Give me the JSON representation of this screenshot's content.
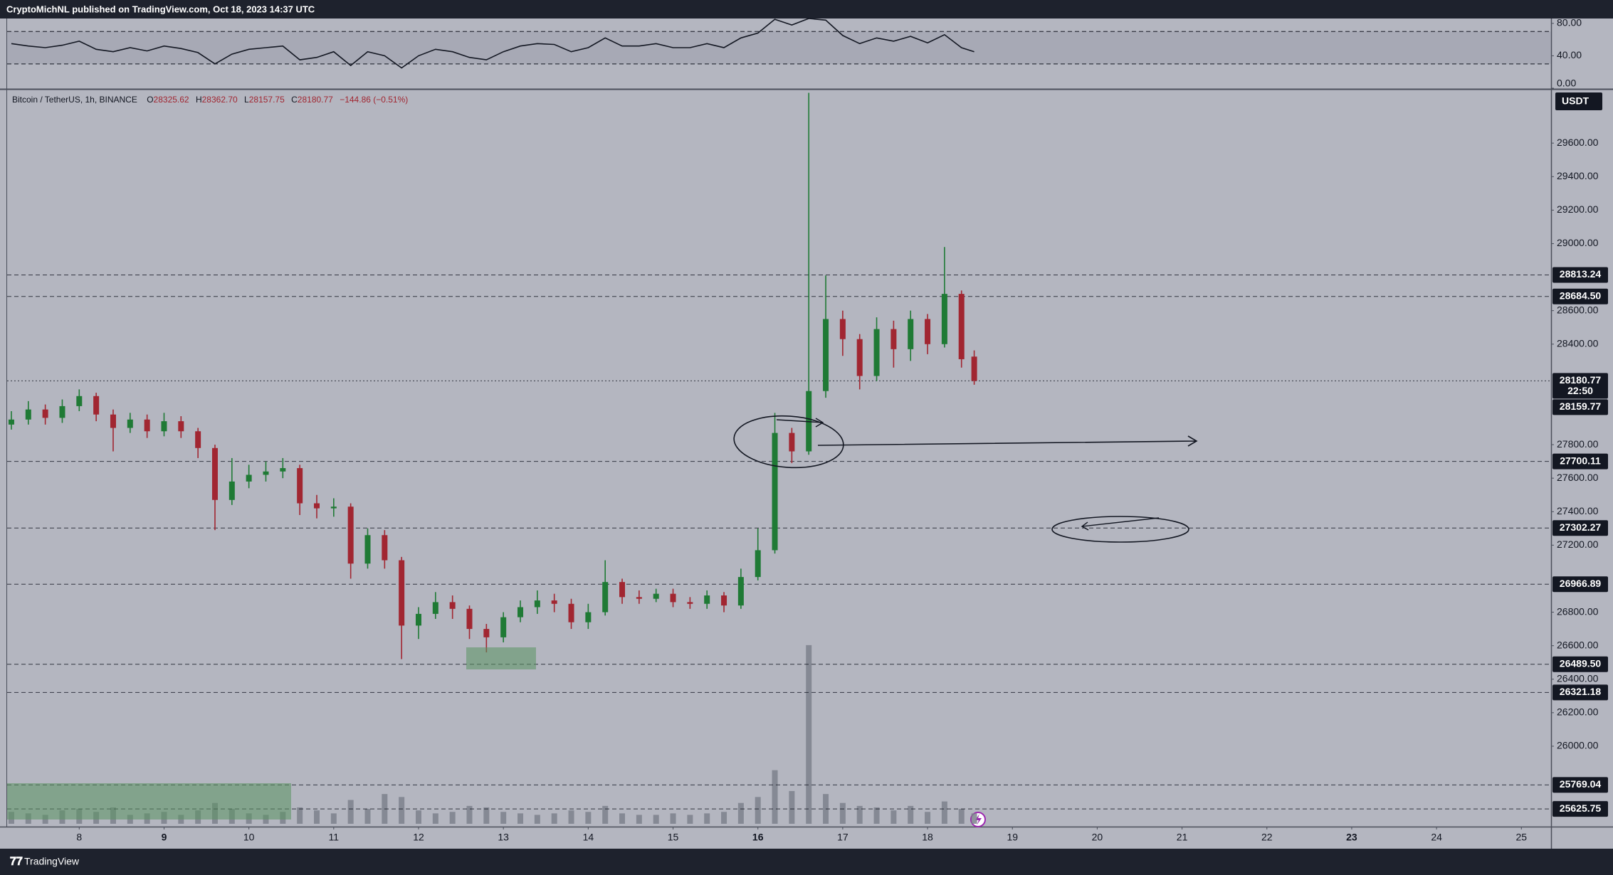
{
  "header": {
    "publisher": "CryptoMichNL published on TradingView.com, Oct 18, 2023 14:37 UTC",
    "symbol": "Bitcoin / TetherUS, 1h, BINANCE",
    "ohlc": [
      {
        "key": "O",
        "value": "28325.62"
      },
      {
        "key": "H",
        "value": "28362.70"
      },
      {
        "key": "L",
        "value": "28157.75"
      },
      {
        "key": "C",
        "value": "28180.77"
      }
    ],
    "change": "−144.86 (−0.51%)",
    "currency": "USDT"
  },
  "footer": {
    "brand": "TradingView"
  },
  "chart_data": {
    "type": "candlestick",
    "x": [
      7.2,
      7.4,
      7.6,
      7.8,
      8.0,
      8.2,
      8.4,
      8.6,
      8.8,
      9.0,
      9.2,
      9.4,
      9.6,
      9.8,
      10.0,
      10.2,
      10.4,
      10.6,
      10.8,
      11.0,
      11.2,
      11.4,
      11.6,
      11.8,
      12.0,
      12.2,
      12.4,
      12.6,
      12.8,
      13.0,
      13.2,
      13.4,
      13.6,
      13.8,
      14.0,
      14.2,
      14.4,
      14.6,
      14.8,
      15.0,
      15.2,
      15.4,
      15.6,
      15.8,
      16.0,
      16.2,
      16.4,
      16.6,
      16.8,
      17.0,
      17.2,
      17.4,
      17.6,
      17.8,
      18.0,
      18.2,
      18.4,
      18.55
    ],
    "open": [
      27920,
      27950,
      28010,
      27960,
      28030,
      28090,
      27980,
      27900,
      27950,
      27880,
      27940,
      27880,
      27780,
      27470,
      27580,
      27620,
      27640,
      27660,
      27450,
      27420,
      27430,
      27090,
      27260,
      27110,
      26720,
      26790,
      26860,
      26820,
      26700,
      26650,
      26770,
      26830,
      26870,
      26850,
      26740,
      26800,
      26980,
      26890,
      26880,
      26910,
      26860,
      26850,
      26900,
      26840,
      27010,
      27170,
      27870,
      27760,
      28120,
      28550,
      28430,
      28210,
      28490,
      28370,
      28550,
      28400,
      28700,
      28325.62
    ],
    "high": [
      28000,
      28060,
      28040,
      28070,
      28130,
      28110,
      28010,
      27990,
      27980,
      27990,
      27970,
      27900,
      27800,
      27720,
      27680,
      27700,
      27720,
      27680,
      27500,
      27480,
      27450,
      27300,
      27290,
      27130,
      26830,
      26920,
      26900,
      26840,
      26730,
      26800,
      26870,
      26930,
      26910,
      26880,
      26850,
      27110,
      27000,
      26930,
      26940,
      26940,
      26890,
      26930,
      26920,
      27060,
      27300,
      27990,
      27900,
      29900,
      28810,
      28600,
      28460,
      28560,
      28540,
      28600,
      28580,
      28980,
      28720,
      28362.7
    ],
    "low": [
      27890,
      27920,
      27920,
      27930,
      28000,
      27940,
      27760,
      27870,
      27840,
      27850,
      27840,
      27720,
      27290,
      27440,
      27540,
      27580,
      27600,
      27380,
      27360,
      27370,
      27000,
      27060,
      27060,
      26520,
      26640,
      26760,
      26760,
      26640,
      26560,
      26620,
      26740,
      26790,
      26800,
      26700,
      26700,
      26780,
      26850,
      26850,
      26860,
      26830,
      26820,
      26820,
      26800,
      26820,
      26990,
      27150,
      27690,
      27740,
      28080,
      28330,
      28130,
      28180,
      28260,
      28300,
      28340,
      28380,
      28260,
      28157.75
    ],
    "close": [
      27950,
      28010,
      27960,
      28030,
      28090,
      27980,
      27900,
      27950,
      27880,
      27940,
      27880,
      27780,
      27470,
      27580,
      27620,
      27640,
      27660,
      27450,
      27420,
      27430,
      27090,
      27260,
      27110,
      26720,
      26790,
      26860,
      26820,
      26700,
      26650,
      26770,
      26830,
      26870,
      26850,
      26740,
      26800,
      26980,
      26890,
      26880,
      26910,
      26860,
      26850,
      26900,
      26840,
      27010,
      27170,
      27870,
      27760,
      28120,
      28550,
      28430,
      28210,
      28490,
      28370,
      28550,
      28400,
      28700,
      28310,
      28180.77
    ],
    "up_color": "#1f7a35",
    "down_color": "#a12631",
    "xlim": [
      7.15,
      25.35
    ],
    "xticks": [
      8,
      9,
      10,
      11,
      12,
      13,
      14,
      15,
      16,
      17,
      18,
      19,
      20,
      21,
      22,
      23,
      24,
      25
    ],
    "xticks_bold": [
      9,
      16,
      23
    ],
    "ylim": [
      25520,
      29915
    ],
    "yticks": [
      {
        "value": 29600,
        "label": "29600.00"
      },
      {
        "value": 29400,
        "label": "29400.00"
      },
      {
        "value": 29200,
        "label": "29200.00"
      },
      {
        "value": 29000,
        "label": "29000.00"
      },
      {
        "value": 28600,
        "label": "28600.00"
      },
      {
        "value": 28400,
        "label": "28400.00"
      },
      {
        "value": 27800,
        "label": "27800.00"
      },
      {
        "value": 27600,
        "label": "27600.00"
      },
      {
        "value": 27400,
        "label": "27400.00"
      },
      {
        "value": 27200,
        "label": "27200.00"
      },
      {
        "value": 26800,
        "label": "26800.00"
      },
      {
        "value": 26600,
        "label": "26600.00"
      },
      {
        "value": 26400,
        "label": "26400.00"
      },
      {
        "value": 26200,
        "label": "26200.00"
      },
      {
        "value": 26000,
        "label": "26000.00"
      }
    ],
    "levels": [
      {
        "value": 28813.24,
        "label": "28813.24",
        "line": "dashed"
      },
      {
        "value": 28684.5,
        "label": "28684.50",
        "line": "dashed"
      },
      {
        "value": 28180.77,
        "label": "28180.77",
        "line": "dotted",
        "sub": "22:50"
      },
      {
        "value": 28159.77,
        "label": "28159.77",
        "line": "none"
      },
      {
        "value": 27700.11,
        "label": "27700.11",
        "line": "dashed"
      },
      {
        "value": 27302.27,
        "label": "27302.27",
        "line": "dashed"
      },
      {
        "value": 26966.89,
        "label": "26966.89",
        "line": "dashed"
      },
      {
        "value": 26489.5,
        "label": "26489.50",
        "line": "dashed"
      },
      {
        "value": 26321.18,
        "label": "26321.18",
        "line": "dashed"
      },
      {
        "value": 25769.04,
        "label": "25769.04",
        "line": "dashed"
      },
      {
        "value": 25625.75,
        "label": "25625.75",
        "line": "dashed"
      }
    ],
    "volume": {
      "values": [
        40,
        35,
        30,
        45,
        50,
        40,
        55,
        30,
        35,
        40,
        30,
        45,
        70,
        50,
        35,
        30,
        40,
        55,
        45,
        35,
        80,
        50,
        100,
        90,
        45,
        35,
        40,
        60,
        55,
        40,
        35,
        30,
        35,
        45,
        40,
        60,
        35,
        30,
        30,
        35,
        30,
        35,
        40,
        70,
        90,
        180,
        110,
        600,
        100,
        70,
        60,
        55,
        45,
        60,
        40,
        75,
        50,
        35
      ],
      "lim": [
        0,
        700
      ],
      "color": "#7d818c"
    },
    "rsi": {
      "values": [
        55,
        52,
        50,
        53,
        58,
        48,
        45,
        50,
        46,
        52,
        49,
        44,
        30,
        42,
        48,
        50,
        52,
        35,
        38,
        45,
        28,
        45,
        40,
        25,
        40,
        48,
        45,
        38,
        35,
        45,
        52,
        55,
        54,
        45,
        50,
        62,
        52,
        52,
        55,
        50,
        50,
        55,
        50,
        62,
        68,
        85,
        78,
        86,
        84,
        65,
        55,
        62,
        58,
        64,
        56,
        66,
        50,
        45
      ],
      "ylim": [
        0,
        86
      ],
      "yticks": [
        {
          "value": 80,
          "label": "80.00"
        },
        {
          "value": 40,
          "label": "40.00"
        },
        {
          "value": 0,
          "label": "0.00"
        }
      ],
      "bands": [
        70,
        30
      ],
      "color": "#131722"
    }
  }
}
